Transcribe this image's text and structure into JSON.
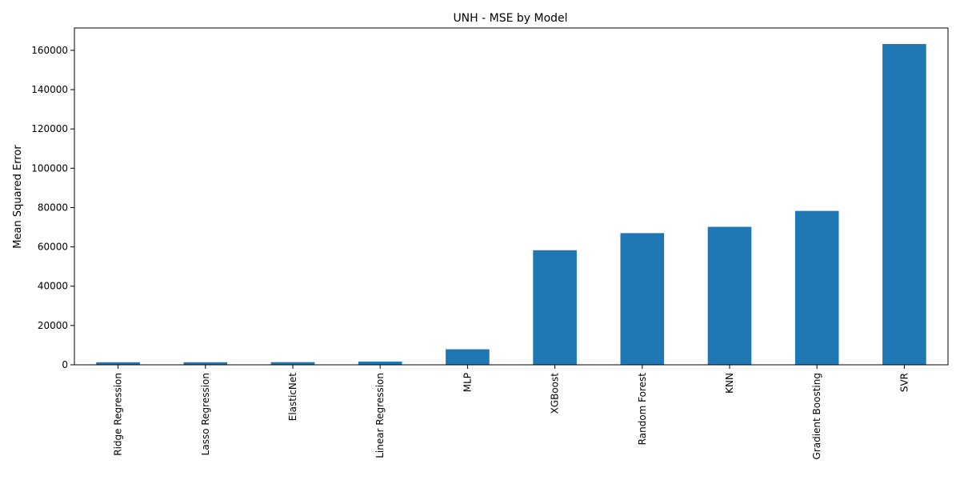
{
  "chart_data": {
    "type": "bar",
    "title": "UNH - MSE by Model",
    "xlabel": "",
    "ylabel": "Mean Squared Error",
    "categories": [
      "Ridge Regression",
      "Lasso Regression",
      "ElasticNet",
      "Linear Regression",
      "MLP",
      "XGBoost",
      "Random Forest",
      "KNN",
      "Gradient Boosting",
      "SVR"
    ],
    "values": [
      1300,
      1300,
      1350,
      1650,
      7900,
      58300,
      67000,
      70200,
      78300,
      163200
    ],
    "ylim": [
      0,
      171360
    ],
    "yticks": [
      0,
      20000,
      40000,
      60000,
      80000,
      100000,
      120000,
      140000,
      160000
    ],
    "grid": false,
    "bar_color": "#1f77b4"
  }
}
